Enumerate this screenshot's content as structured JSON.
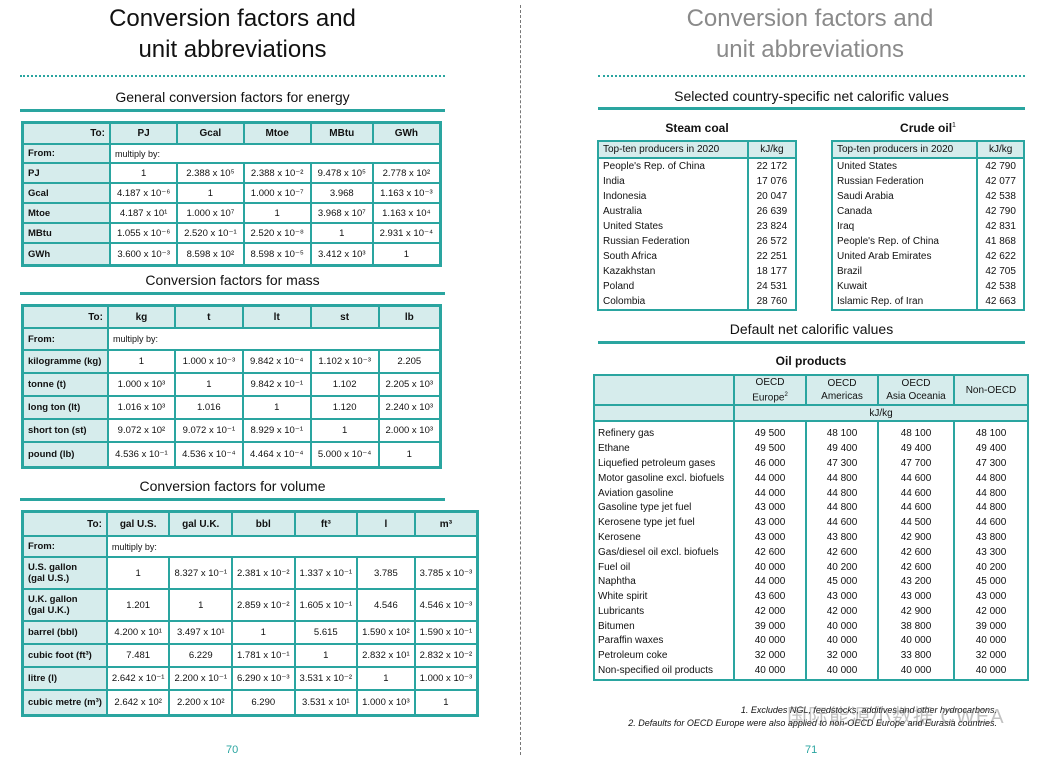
{
  "left": {
    "title_line1": "Conversion factors and",
    "title_line2": "unit abbreviations",
    "energy": {
      "heading": "General conversion factors for energy",
      "to_label": "To:",
      "columns": [
        "PJ",
        "Gcal",
        "Mtoe",
        "MBtu",
        "GWh"
      ],
      "from_label": "From:",
      "multiply_label": "multiply by:",
      "rows": [
        {
          "label": "PJ",
          "values": [
            "1",
            "2.388 x 10⁵",
            "2.388 x 10⁻²",
            "9.478 x 10⁵",
            "2.778 x 10²"
          ]
        },
        {
          "label": "Gcal",
          "values": [
            "4.187 x 10⁻⁶",
            "1",
            "1.000 x 10⁻⁷",
            "3.968",
            "1.163 x 10⁻³"
          ]
        },
        {
          "label": "Mtoe",
          "values": [
            "4.187 x 10¹",
            "1.000 x 10⁷",
            "1",
            "3.968 x 10⁷",
            "1.163 x 10⁴"
          ]
        },
        {
          "label": "MBtu",
          "values": [
            "1.055 x 10⁻⁶",
            "2.520 x 10⁻¹",
            "2.520 x 10⁻⁸",
            "1",
            "2.931 x 10⁻⁴"
          ]
        },
        {
          "label": "GWh",
          "values": [
            "3.600 x 10⁻³",
            "8.598 x 10²",
            "8.598 x 10⁻⁵",
            "3.412 x 10³",
            "1"
          ]
        }
      ]
    },
    "mass": {
      "heading": "Conversion factors for mass",
      "to_label": "To:",
      "columns": [
        "kg",
        "t",
        "lt",
        "st",
        "lb"
      ],
      "from_label": "From:",
      "multiply_label": "multiply by:",
      "rows": [
        {
          "label": "kilogramme (kg)",
          "values": [
            "1",
            "1.000 x 10⁻³",
            "9.842 x 10⁻⁴",
            "1.102 x 10⁻³",
            "2.205"
          ]
        },
        {
          "label": "tonne (t)",
          "values": [
            "1.000 x 10³",
            "1",
            "9.842 x 10⁻¹",
            "1.102",
            "2.205 x 10³"
          ]
        },
        {
          "label": "long ton (lt)",
          "values": [
            "1.016 x 10³",
            "1.016",
            "1",
            "1.120",
            "2.240 x 10³"
          ]
        },
        {
          "label": "short ton (st)",
          "values": [
            "9.072 x 10²",
            "9.072 x 10⁻¹",
            "8.929 x 10⁻¹",
            "1",
            "2.000 x 10³"
          ]
        },
        {
          "label": "pound (lb)",
          "values": [
            "4.536 x 10⁻¹",
            "4.536 x 10⁻⁴",
            "4.464 x 10⁻⁴",
            "5.000 x 10⁻⁴",
            "1"
          ]
        }
      ]
    },
    "volume": {
      "heading": "Conversion factors for volume",
      "to_label": "To:",
      "columns": [
        "gal U.S.",
        "gal U.K.",
        "bbl",
        "ft³",
        "l",
        "m³"
      ],
      "from_label": "From:",
      "multiply_label": "multiply by:",
      "rows": [
        {
          "label1": "U.S. gallon",
          "label2": "(gal U.S.)",
          "values": [
            "1",
            "8.327 x 10⁻¹",
            "2.381 x 10⁻²",
            "1.337 x 10⁻¹",
            "3.785",
            "3.785 x 10⁻³"
          ]
        },
        {
          "label1": "U.K. gallon",
          "label2": "(gal U.K.)",
          "values": [
            "1.201",
            "1",
            "2.859 x 10⁻²",
            "1.605 x 10⁻¹",
            "4.546",
            "4.546 x 10⁻³"
          ]
        },
        {
          "label1": "barrel (bbl)",
          "label2": "",
          "values": [
            "4.200 x 10¹",
            "3.497 x 10¹",
            "1",
            "5.615",
            "1.590 x 10²",
            "1.590 x 10⁻¹"
          ]
        },
        {
          "label1": "cubic foot (ft³)",
          "label2": "",
          "values": [
            "7.481",
            "6.229",
            "1.781 x 10⁻¹",
            "1",
            "2.832 x 10¹",
            "2.832 x 10⁻²"
          ]
        },
        {
          "label1": "litre (l)",
          "label2": "",
          "values": [
            "2.642 x 10⁻¹",
            "2.200 x 10⁻¹",
            "6.290 x 10⁻³",
            "3.531 x 10⁻²",
            "1",
            "1.000 x 10⁻³"
          ]
        },
        {
          "label1": "cubic metre (m³)",
          "label2": "",
          "values": [
            "2.642 x 10²",
            "2.200 x 10²",
            "6.290",
            "3.531 x 10¹",
            "1.000 x 10³",
            "1"
          ]
        }
      ]
    },
    "page_number": "70"
  },
  "right": {
    "title_line1": "Conversion factors and",
    "title_line2": "unit abbreviations",
    "country_heading": "Selected country-specific net calorific values",
    "steam_coal": {
      "title": "Steam coal",
      "header_label": "Top-ten producers in 2020",
      "header_unit": "kJ/kg",
      "rows": [
        {
          "country": "People's Rep. of China",
          "value": "22 172"
        },
        {
          "country": "India",
          "value": "17 076"
        },
        {
          "country": "Indonesia",
          "value": "20 047"
        },
        {
          "country": "Australia",
          "value": "26 639"
        },
        {
          "country": "United States",
          "value": "23 824"
        },
        {
          "country": "Russian Federation",
          "value": "26 572"
        },
        {
          "country": "South Africa",
          "value": "22 251"
        },
        {
          "country": "Kazakhstan",
          "value": "18 177"
        },
        {
          "country": "Poland",
          "value": "24 531"
        },
        {
          "country": "Colombia",
          "value": "28 760"
        }
      ]
    },
    "crude_oil": {
      "title": "Crude oil",
      "title_sup": "1",
      "header_label": "Top-ten producers in 2020",
      "header_unit": "kJ/kg",
      "rows": [
        {
          "country": "United States",
          "value": "42 790"
        },
        {
          "country": "Russian Federation",
          "value": "42 077"
        },
        {
          "country": "Saudi Arabia",
          "value": "42 538"
        },
        {
          "country": "Canada",
          "value": "42 790"
        },
        {
          "country": "Iraq",
          "value": "42 831"
        },
        {
          "country": "People's Rep. of China",
          "value": "41 868"
        },
        {
          "country": "United Arab Emirates",
          "value": "42 622"
        },
        {
          "country": "Brazil",
          "value": "42 705"
        },
        {
          "country": "Kuwait",
          "value": "42 538"
        },
        {
          "country": "Islamic Rep. of Iran",
          "value": "42 663"
        }
      ]
    },
    "default_heading": "Default net calorific values",
    "oil_products": {
      "title": "Oil products",
      "columns": [
        {
          "line1": "OECD",
          "line2": "Europe",
          "sup": "2"
        },
        {
          "line1": "OECD",
          "line2": "Americas",
          "sup": ""
        },
        {
          "line1": "OECD",
          "line2": "Asia Oceania",
          "sup": ""
        },
        {
          "line1": "Non-OECD",
          "line2": "",
          "sup": ""
        }
      ],
      "unit": "kJ/kg",
      "rows": [
        {
          "product": "Refinery gas",
          "values": [
            "49 500",
            "48 100",
            "48 100",
            "48 100"
          ]
        },
        {
          "product": "Ethane",
          "values": [
            "49 500",
            "49 400",
            "49 400",
            "49 400"
          ]
        },
        {
          "product": "Liquefied petroleum gases",
          "values": [
            "46 000",
            "47 300",
            "47 700",
            "47 300"
          ]
        },
        {
          "product": "Motor gasoline excl. biofuels",
          "values": [
            "44 000",
            "44 800",
            "44 600",
            "44 800"
          ]
        },
        {
          "product": "Aviation gasoline",
          "values": [
            "44 000",
            "44 800",
            "44 600",
            "44 800"
          ]
        },
        {
          "product": "Gasoline type jet fuel",
          "values": [
            "43 000",
            "44 800",
            "44 600",
            "44 800"
          ]
        },
        {
          "product": "Kerosene type jet fuel",
          "values": [
            "43 000",
            "44 600",
            "44 500",
            "44 600"
          ]
        },
        {
          "product": "Kerosene",
          "values": [
            "43 000",
            "43 800",
            "42 900",
            "43 800"
          ]
        },
        {
          "product": "Gas/diesel oil excl. biofuels",
          "values": [
            "42 600",
            "42 600",
            "42 600",
            "43 300"
          ]
        },
        {
          "product": "Fuel oil",
          "values": [
            "40 000",
            "40 200",
            "42 600",
            "40 200"
          ]
        },
        {
          "product": "Naphtha",
          "values": [
            "44 000",
            "45 000",
            "43 200",
            "45 000"
          ]
        },
        {
          "product": "White spirit",
          "values": [
            "43 600",
            "43 000",
            "43 000",
            "43 000"
          ]
        },
        {
          "product": "Lubricants",
          "values": [
            "42 000",
            "42 000",
            "42 900",
            "42 000"
          ]
        },
        {
          "product": "Bitumen",
          "values": [
            "39 000",
            "40 000",
            "38 800",
            "39 000"
          ]
        },
        {
          "product": "Paraffin waxes",
          "values": [
            "40 000",
            "40 000",
            "40 000",
            "40 000"
          ]
        },
        {
          "product": "Petroleum coke",
          "values": [
            "32 000",
            "32 000",
            "33 800",
            "32 000"
          ]
        },
        {
          "product": "Non-specified oil products",
          "values": [
            "40 000",
            "40 000",
            "40 000",
            "40 000"
          ]
        }
      ]
    },
    "footnote1": "1. Excludes NGL, feedstocks, additives and other hydrocarbons.",
    "footnote2": "2. Defaults for OECD Europe were also applied to non-OECD Europe and Eurasia countries.",
    "page_number": "71",
    "watermark": "国际能源小数据 CWEA"
  }
}
